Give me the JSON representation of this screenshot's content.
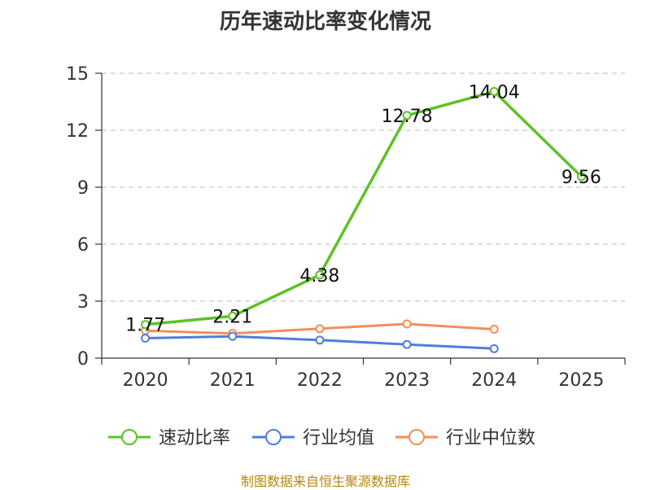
{
  "title": "历年速动比率变化情况",
  "source": "制图数据来自恒生聚源数据库",
  "chart_data": {
    "type": "line",
    "title": "历年速动比率变化情况",
    "categories": [
      "2020",
      "2021",
      "2022",
      "2023",
      "2024",
      "2025"
    ],
    "ylim": [
      0,
      15
    ],
    "yticks": [
      0,
      3,
      6,
      9,
      12,
      15
    ],
    "grid": true,
    "legend_position": "bottom",
    "series": [
      {
        "name": "速动比率",
        "color": "#5cc225",
        "values": [
          1.77,
          2.21,
          4.38,
          12.78,
          14.04,
          9.56
        ],
        "labels": [
          "1.77",
          "2.21",
          "4.38",
          "12.78",
          "14.04",
          "9.56"
        ]
      },
      {
        "name": "行业均值",
        "color": "#4e7fd9",
        "values": [
          1.05,
          1.15,
          0.95,
          0.72,
          0.5,
          null
        ]
      },
      {
        "name": "行业中位数",
        "color": "#f28e5b",
        "values": [
          1.45,
          1.3,
          1.55,
          1.8,
          1.52,
          null
        ]
      }
    ]
  }
}
